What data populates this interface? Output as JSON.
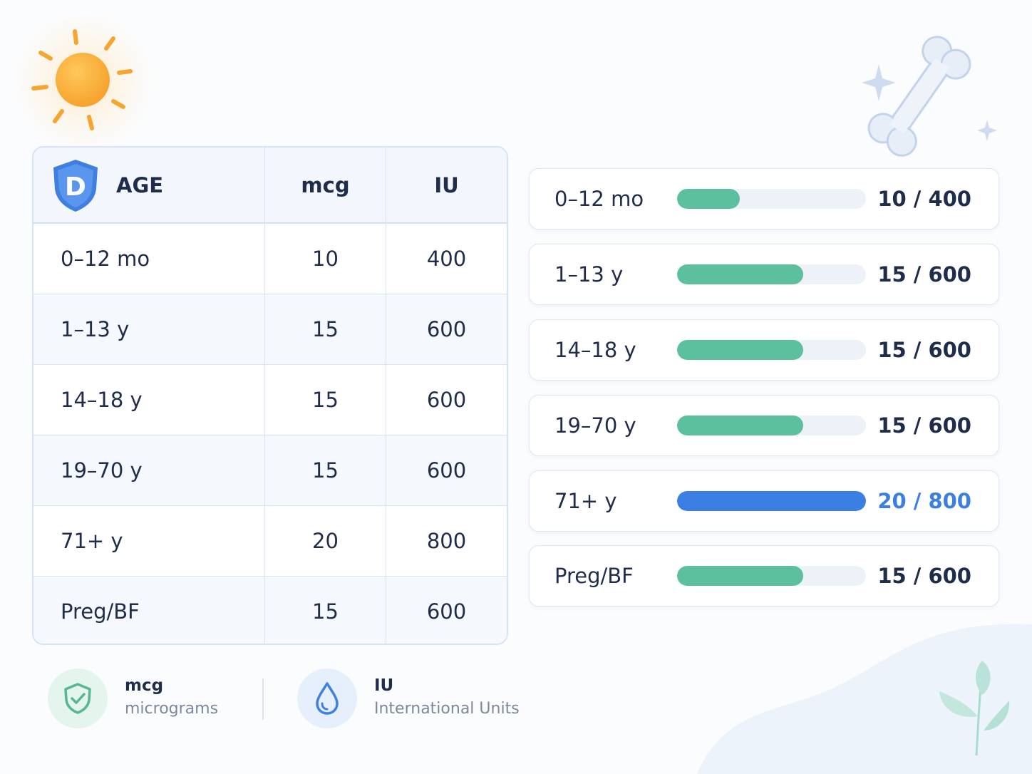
{
  "table": {
    "header": {
      "age": "AGE",
      "mcg": "mcg",
      "iu": "IU",
      "badge_letter": "D"
    },
    "rows": [
      {
        "age": "0–12 mo",
        "mcg": "10",
        "iu": "400"
      },
      {
        "age": "1–13 y",
        "mcg": "15",
        "iu": "600"
      },
      {
        "age": "14–18 y",
        "mcg": "15",
        "iu": "600"
      },
      {
        "age": "19–70 y",
        "mcg": "15",
        "iu": "600"
      },
      {
        "age": "71+ y",
        "mcg": "20",
        "iu": "800"
      },
      {
        "age": "Preg/BF",
        "mcg": "15",
        "iu": "600"
      }
    ]
  },
  "bars": {
    "max_iu": 800,
    "items": [
      {
        "label": "0–12 mo",
        "value": "10 / 400",
        "iu": 400,
        "highlight": false
      },
      {
        "label": "1–13 y",
        "value": "15 / 600",
        "iu": 600,
        "highlight": false
      },
      {
        "label": "14–18 y",
        "value": "15 / 600",
        "iu": 600,
        "highlight": false
      },
      {
        "label": "19–70 y",
        "value": "15 / 600",
        "iu": 600,
        "highlight": false
      },
      {
        "label": "71+ y",
        "value": "20 / 800",
        "iu": 800,
        "highlight": true
      },
      {
        "label": "Preg/BF",
        "value": "15 / 600",
        "iu": 600,
        "highlight": false
      }
    ],
    "colors": {
      "normal": "#5cc09f",
      "highlight": "#3b7fe4"
    }
  },
  "legend": {
    "mcg": {
      "title": "mcg",
      "subtitle": "micrograms",
      "icon": "shield-check-icon"
    },
    "iu": {
      "title": "IU",
      "subtitle": "International Units",
      "icon": "droplet-icon"
    }
  },
  "decorations": {
    "sun": "sun-icon",
    "bone": "bone-icon",
    "sparkles": "sparkle-icon",
    "leaf": "leaf-icon"
  }
}
